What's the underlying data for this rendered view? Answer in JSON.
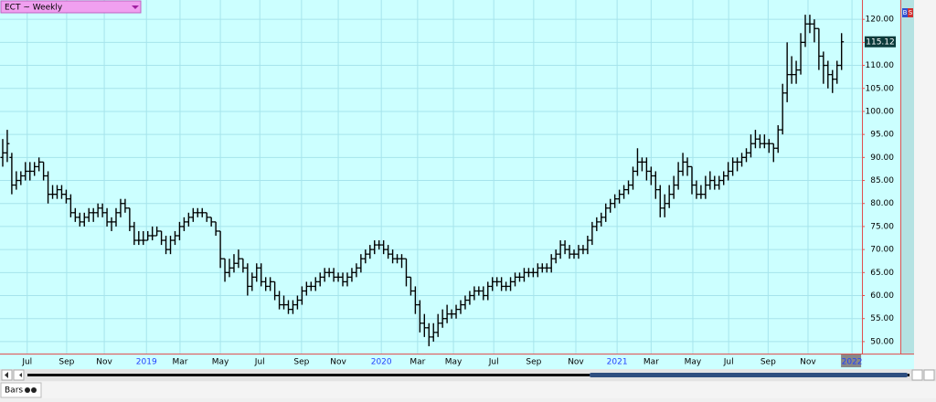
{
  "chart_data": {
    "type": "ohlc",
    "title": "ECT ~ Weekly",
    "ohlc": [
      [
        90,
        94,
        88,
        91
      ],
      [
        91,
        96,
        89,
        93
      ],
      [
        90,
        91,
        82,
        84
      ],
      [
        84,
        87,
        83,
        85
      ],
      [
        85,
        87,
        84,
        86
      ],
      [
        86,
        89,
        85,
        87
      ],
      [
        87,
        89,
        85,
        87
      ],
      [
        87,
        89,
        86,
        88
      ],
      [
        88,
        90,
        87,
        89
      ],
      [
        89,
        89,
        85,
        86
      ],
      [
        86,
        87,
        80,
        82
      ],
      [
        82,
        84,
        81,
        82
      ],
      [
        82,
        84,
        81,
        83
      ],
      [
        83,
        84,
        81,
        82
      ],
      [
        82,
        83,
        80,
        81
      ],
      [
        81,
        82,
        77,
        78
      ],
      [
        78,
        79,
        76,
        77
      ],
      [
        77,
        78,
        75,
        76
      ],
      [
        76,
        78,
        75,
        77
      ],
      [
        77,
        79,
        76,
        78
      ],
      [
        78,
        79,
        76,
        78
      ],
      [
        78,
        80,
        77,
        79
      ],
      [
        79,
        80,
        77,
        78
      ],
      [
        78,
        79,
        75,
        76
      ],
      [
        76,
        77,
        74,
        76
      ],
      [
        76,
        79,
        75,
        78
      ],
      [
        78,
        81,
        77,
        80
      ],
      [
        80,
        81,
        78,
        79
      ],
      [
        79,
        79,
        74,
        75
      ],
      [
        75,
        76,
        71,
        72
      ],
      [
        72,
        74,
        71,
        72
      ],
      [
        72,
        74,
        71,
        72
      ],
      [
        72,
        74,
        72,
        73
      ],
      [
        73,
        75,
        72,
        73
      ],
      [
        73,
        75,
        73,
        74
      ],
      [
        74,
        74,
        71,
        72
      ],
      [
        72,
        73,
        69,
        70
      ],
      [
        70,
        73,
        69,
        72
      ],
      [
        72,
        74,
        71,
        73
      ],
      [
        73,
        76,
        72,
        75
      ],
      [
        75,
        77,
        74,
        76
      ],
      [
        76,
        78,
        75,
        77
      ],
      [
        77,
        79,
        76,
        78
      ],
      [
        78,
        79,
        77,
        78
      ],
      [
        78,
        79,
        77,
        78
      ],
      [
        78,
        78,
        76,
        77
      ],
      [
        77,
        77,
        75,
        76
      ],
      [
        76,
        76,
        73,
        74
      ],
      [
        74,
        74,
        66,
        68
      ],
      [
        68,
        68,
        63,
        65
      ],
      [
        65,
        68,
        64,
        66
      ],
      [
        66,
        69,
        65,
        67
      ],
      [
        67,
        70,
        66,
        68
      ],
      [
        68,
        68,
        65,
        66
      ],
      [
        66,
        67,
        60,
        62
      ],
      [
        62,
        65,
        61,
        64
      ],
      [
        64,
        67,
        63,
        66
      ],
      [
        66,
        67,
        62,
        63
      ],
      [
        63,
        64,
        61,
        62
      ],
      [
        62,
        64,
        61,
        63
      ],
      [
        63,
        63,
        59,
        60
      ],
      [
        60,
        61,
        57,
        58
      ],
      [
        58,
        60,
        57,
        58
      ],
      [
        58,
        59,
        56,
        57
      ],
      [
        57,
        59,
        56,
        58
      ],
      [
        58,
        60,
        57,
        59
      ],
      [
        59,
        62,
        58,
        61
      ],
      [
        61,
        63,
        60,
        62
      ],
      [
        62,
        63,
        61,
        62
      ],
      [
        62,
        64,
        61,
        63
      ],
      [
        63,
        65,
        62,
        64
      ],
      [
        64,
        66,
        63,
        65
      ],
      [
        65,
        66,
        64,
        65
      ],
      [
        65,
        66,
        63,
        64
      ],
      [
        64,
        65,
        63,
        64
      ],
      [
        64,
        65,
        62,
        63
      ],
      [
        63,
        65,
        62,
        64
      ],
      [
        64,
        66,
        63,
        65
      ],
      [
        65,
        67,
        64,
        66
      ],
      [
        66,
        69,
        65,
        68
      ],
      [
        68,
        70,
        67,
        69
      ],
      [
        69,
        71,
        68,
        70
      ],
      [
        70,
        72,
        69,
        71
      ],
      [
        71,
        72,
        70,
        71
      ],
      [
        71,
        72,
        69,
        70
      ],
      [
        70,
        71,
        68,
        69
      ],
      [
        69,
        70,
        67,
        68
      ],
      [
        68,
        69,
        67,
        68
      ],
      [
        68,
        69,
        66,
        68
      ],
      [
        68,
        68,
        62,
        64
      ],
      [
        64,
        64,
        60,
        61
      ],
      [
        61,
        62,
        56,
        58
      ],
      [
        58,
        59,
        52,
        54
      ],
      [
        54,
        56,
        51,
        53
      ],
      [
        53,
        54,
        49,
        51
      ],
      [
        51,
        54,
        50,
        52
      ],
      [
        52,
        56,
        51,
        54
      ],
      [
        54,
        57,
        53,
        55
      ],
      [
        55,
        58,
        54,
        56
      ],
      [
        56,
        57,
        55,
        56
      ],
      [
        56,
        58,
        55,
        57
      ],
      [
        57,
        59,
        56,
        58
      ],
      [
        58,
        60,
        57,
        59
      ],
      [
        59,
        61,
        58,
        60
      ],
      [
        60,
        62,
        59,
        61
      ],
      [
        61,
        62,
        60,
        61
      ],
      [
        61,
        62,
        59,
        60
      ],
      [
        60,
        63,
        59,
        62
      ],
      [
        62,
        64,
        61,
        63
      ],
      [
        63,
        64,
        62,
        63
      ],
      [
        63,
        64,
        61,
        62
      ],
      [
        62,
        63,
        61,
        62
      ],
      [
        62,
        64,
        61,
        63
      ],
      [
        63,
        65,
        62,
        64
      ],
      [
        64,
        65,
        63,
        64
      ],
      [
        64,
        66,
        63,
        65
      ],
      [
        65,
        66,
        64,
        65
      ],
      [
        65,
        66,
        64,
        65
      ],
      [
        65,
        67,
        64,
        66
      ],
      [
        66,
        67,
        65,
        66
      ],
      [
        66,
        67,
        65,
        66
      ],
      [
        66,
        69,
        65,
        68
      ],
      [
        68,
        70,
        67,
        69
      ],
      [
        69,
        72,
        68,
        71
      ],
      [
        71,
        72,
        69,
        70
      ],
      [
        70,
        71,
        68,
        69
      ],
      [
        69,
        70,
        68,
        69
      ],
      [
        69,
        71,
        68,
        70
      ],
      [
        70,
        71,
        69,
        70
      ],
      [
        70,
        73,
        69,
        72
      ],
      [
        72,
        76,
        71,
        75
      ],
      [
        75,
        77,
        74,
        76
      ],
      [
        76,
        78,
        75,
        77
      ],
      [
        77,
        80,
        76,
        79
      ],
      [
        79,
        81,
        78,
        80
      ],
      [
        80,
        82,
        79,
        81
      ],
      [
        81,
        83,
        80,
        82
      ],
      [
        82,
        84,
        81,
        83
      ],
      [
        83,
        85,
        82,
        84
      ],
      [
        84,
        88,
        83,
        87
      ],
      [
        87,
        92,
        86,
        89
      ],
      [
        89,
        90,
        87,
        89
      ],
      [
        89,
        90,
        85,
        87
      ],
      [
        87,
        88,
        84,
        86
      ],
      [
        86,
        87,
        81,
        83
      ],
      [
        83,
        84,
        77,
        79
      ],
      [
        79,
        82,
        77,
        80
      ],
      [
        80,
        84,
        79,
        82
      ],
      [
        82,
        86,
        81,
        84
      ],
      [
        84,
        89,
        83,
        87
      ],
      [
        87,
        91,
        86,
        89
      ],
      [
        89,
        90,
        86,
        88
      ],
      [
        88,
        88,
        82,
        84
      ],
      [
        84,
        85,
        81,
        82
      ],
      [
        82,
        84,
        81,
        82
      ],
      [
        82,
        86,
        81,
        84
      ],
      [
        84,
        87,
        83,
        85
      ],
      [
        85,
        86,
        83,
        84
      ],
      [
        84,
        86,
        83,
        85
      ],
      [
        85,
        87,
        84,
        86
      ],
      [
        86,
        89,
        85,
        87
      ],
      [
        87,
        90,
        86,
        89
      ],
      [
        89,
        90,
        87,
        89
      ],
      [
        89,
        91,
        88,
        90
      ],
      [
        90,
        92,
        89,
        91
      ],
      [
        91,
        95,
        90,
        93
      ],
      [
        93,
        96,
        92,
        94
      ],
      [
        94,
        95,
        92,
        93
      ],
      [
        93,
        95,
        92,
        93
      ],
      [
        93,
        94,
        91,
        93
      ],
      [
        93,
        93,
        89,
        92
      ],
      [
        92,
        97,
        91,
        96
      ],
      [
        96,
        106,
        95,
        104
      ],
      [
        104,
        115,
        102,
        108
      ],
      [
        108,
        112,
        106,
        108
      ],
      [
        108,
        111,
        106,
        109
      ],
      [
        109,
        117,
        108,
        115
      ],
      [
        115,
        121,
        114,
        119
      ],
      [
        119,
        121,
        117,
        119
      ],
      [
        119,
        120,
        115,
        118
      ],
      [
        118,
        118,
        109,
        112
      ],
      [
        112,
        113,
        106,
        110
      ],
      [
        110,
        111,
        105,
        108
      ],
      [
        108,
        109,
        104,
        107
      ],
      [
        107,
        111,
        106,
        110
      ],
      [
        110,
        117,
        109,
        115.12
      ]
    ],
    "color": "#000000",
    "xlim": [
      -0.6,
      189.5
    ],
    "xticks": [
      {
        "value": 5.4,
        "label": "Jul"
      },
      {
        "value": 14.1,
        "label": "Sep"
      },
      {
        "value": 22.4,
        "label": "Nov"
      },
      {
        "value": 31.7,
        "label": "2019"
      },
      {
        "value": 39.1,
        "label": "Mar"
      },
      {
        "value": 48,
        "label": "May"
      },
      {
        "value": 56.7,
        "label": "Jul"
      },
      {
        "value": 65.9,
        "label": "Sep"
      },
      {
        "value": 74,
        "label": "Nov"
      },
      {
        "value": 83.5,
        "label": "2020"
      },
      {
        "value": 91.5,
        "label": "Mar"
      },
      {
        "value": 99.4,
        "label": "May"
      },
      {
        "value": 108.3,
        "label": "Jul"
      },
      {
        "value": 117.1,
        "label": "Sep"
      },
      {
        "value": 126.4,
        "label": "Nov"
      },
      {
        "value": 135.5,
        "label": "2021"
      },
      {
        "value": 143,
        "label": "Mar"
      },
      {
        "value": 152.2,
        "label": "May"
      },
      {
        "value": 160.1,
        "label": "Jul"
      },
      {
        "value": 168.8,
        "label": "Sep"
      },
      {
        "value": 177.6,
        "label": "Nov"
      },
      {
        "value": 187.3,
        "label": "2022"
      }
    ],
    "ylim": [
      47.4,
      124.2
    ],
    "yticks": [
      {
        "value": 50,
        "label": "50.00"
      },
      {
        "value": 55,
        "label": "55.00"
      },
      {
        "value": 60,
        "label": "60.00"
      },
      {
        "value": 65,
        "label": "65.00"
      },
      {
        "value": 70,
        "label": "70.00"
      },
      {
        "value": 75,
        "label": "75.00"
      },
      {
        "value": 80,
        "label": "80.00"
      },
      {
        "value": 85,
        "label": "85.00"
      },
      {
        "value": 90,
        "label": "90.00"
      },
      {
        "value": 95,
        "label": "95.00"
      },
      {
        "value": 100,
        "label": "100.00"
      },
      {
        "value": 105,
        "label": "105.00"
      },
      {
        "value": 110,
        "label": "110.00"
      },
      {
        "value": 115,
        "label": "115.00"
      },
      {
        "value": 120,
        "label": "120.00"
      }
    ],
    "grid": true
  },
  "ui": {
    "tab_label": "Bars",
    "trade_buttons": [
      "B",
      "S"
    ]
  }
}
